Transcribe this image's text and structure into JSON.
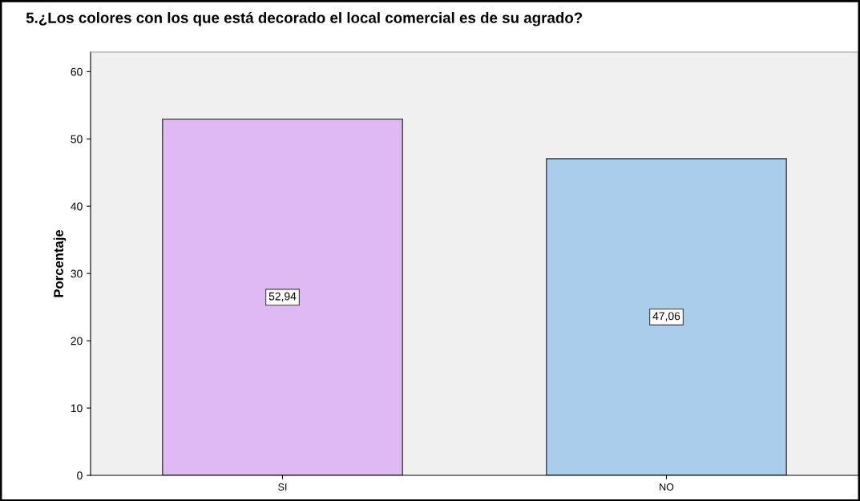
{
  "chart_data": {
    "type": "bar",
    "title": "5.¿Los colores con los que está decorado el local comercial es de su agrado?",
    "ylabel": "Porcentaje",
    "categories": [
      "SI",
      "NO"
    ],
    "values": [
      52.94,
      47.06
    ],
    "value_labels": [
      "52,94",
      "47,06"
    ],
    "colors": [
      "#dfb9f2",
      "#abcdec"
    ],
    "ylim": [
      0,
      62.9
    ],
    "yticks": [
      0,
      10,
      20,
      30,
      40,
      50,
      60
    ],
    "grid": false
  }
}
